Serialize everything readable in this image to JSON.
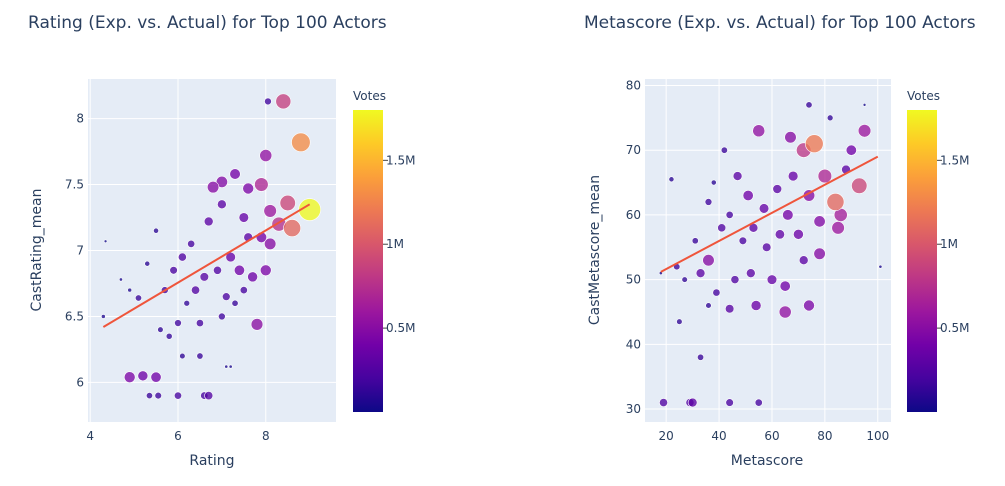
{
  "chart_data": [
    {
      "type": "scatter",
      "title": "Rating (Exp. vs. Actual) for Top 100 Actors",
      "xlabel": "Rating",
      "ylabel": "CastRating_mean",
      "xlim": [
        3.95,
        9.6
      ],
      "ylim": [
        5.7,
        8.3
      ],
      "xticks": [
        4,
        6,
        8
      ],
      "yticks": [
        6,
        6.5,
        7,
        7.5,
        8
      ],
      "size_encoding": "Votes",
      "color_encoding": "Votes",
      "colorbar": {
        "title": "Votes",
        "ticks": [
          "0.5M",
          "1M",
          "1.5M"
        ],
        "tick_values": [
          500000,
          1000000,
          1500000
        ],
        "range": [
          0,
          1800000
        ]
      },
      "trendline": {
        "x": [
          4.3,
          9.0
        ],
        "y": [
          6.42,
          7.35
        ],
        "color": "#ef553b"
      },
      "sampled_points_x_y_votes": [
        [
          4.3,
          6.5,
          60000
        ],
        [
          4.35,
          7.07,
          10000
        ],
        [
          4.9,
          6.04,
          450000
        ],
        [
          5.2,
          6.05,
          380000
        ],
        [
          5.5,
          6.04,
          400000
        ],
        [
          5.35,
          5.9,
          150000
        ],
        [
          5.55,
          5.9,
          170000
        ],
        [
          6.0,
          5.9,
          200000
        ],
        [
          6.6,
          5.9,
          210000
        ],
        [
          6.7,
          5.9,
          260000
        ],
        [
          6.1,
          6.2,
          120000
        ],
        [
          6.5,
          6.2,
          150000
        ],
        [
          7.1,
          6.12,
          40000
        ],
        [
          7.2,
          6.12,
          40000
        ],
        [
          4.7,
          6.78,
          40000
        ],
        [
          4.9,
          6.7,
          60000
        ],
        [
          5.1,
          6.64,
          150000
        ],
        [
          5.3,
          6.9,
          100000
        ],
        [
          5.5,
          7.15,
          100000
        ],
        [
          5.6,
          6.4,
          120000
        ],
        [
          5.8,
          6.35,
          140000
        ],
        [
          6.0,
          6.45,
          180000
        ],
        [
          6.2,
          6.6,
          130000
        ],
        [
          6.5,
          6.45,
          200000
        ],
        [
          7.0,
          6.5,
          180000
        ],
        [
          7.3,
          6.6,
          150000
        ],
        [
          7.8,
          6.44,
          520000
        ],
        [
          7.5,
          6.7,
          200000
        ],
        [
          6.8,
          7.48,
          500000
        ],
        [
          7.0,
          7.52,
          480000
        ],
        [
          7.3,
          7.58,
          420000
        ],
        [
          7.6,
          7.47,
          450000
        ],
        [
          7.9,
          7.5,
          700000
        ],
        [
          8.0,
          7.72,
          550000
        ],
        [
          8.05,
          8.13,
          180000
        ],
        [
          8.4,
          8.13,
          850000
        ],
        [
          8.8,
          7.82,
          1300000
        ],
        [
          9.0,
          7.31,
          1800000
        ],
        [
          8.6,
          7.17,
          1100000
        ],
        [
          8.3,
          7.2,
          750000
        ],
        [
          8.1,
          7.3,
          600000
        ],
        [
          8.5,
          7.36,
          900000
        ],
        [
          7.6,
          7.1,
          300000
        ],
        [
          7.2,
          6.95,
          350000
        ],
        [
          6.9,
          6.85,
          250000
        ],
        [
          6.6,
          6.8,
          280000
        ],
        [
          6.3,
          7.05,
          200000
        ],
        [
          6.1,
          6.95,
          250000
        ],
        [
          5.9,
          6.85,
          220000
        ],
        [
          6.7,
          7.22,
          300000
        ],
        [
          7.4,
          6.85,
          400000
        ],
        [
          7.7,
          6.8,
          380000
        ],
        [
          8.0,
          6.85,
          450000
        ],
        [
          8.1,
          7.05,
          500000
        ],
        [
          7.0,
          7.35,
          300000
        ],
        [
          7.5,
          7.25,
          350000
        ],
        [
          5.7,
          6.7,
          180000
        ],
        [
          6.4,
          6.7,
          260000
        ],
        [
          7.1,
          6.65,
          230000
        ],
        [
          7.9,
          7.1,
          420000
        ]
      ]
    },
    {
      "type": "scatter",
      "title": "Metascore (Exp. vs. Actual) for Top 100 Actors",
      "xlabel": "Metascore",
      "ylabel": "CastMetascore_mean",
      "xlim": [
        12,
        105
      ],
      "ylim": [
        28,
        81
      ],
      "xticks": [
        20,
        40,
        60,
        80,
        100
      ],
      "yticks": [
        30,
        40,
        50,
        60,
        70,
        80
      ],
      "size_encoding": "Votes",
      "color_encoding": "Votes",
      "colorbar": {
        "title": "Votes",
        "ticks": [
          "0.5M",
          "1M",
          "1.5M"
        ],
        "tick_values": [
          500000,
          1000000,
          1500000
        ],
        "range": [
          0,
          1800000
        ]
      },
      "trendline": {
        "x": [
          18,
          100
        ],
        "y": [
          51.2,
          69.0
        ],
        "color": "#ef553b"
      },
      "sampled_points_x_y_votes": [
        [
          19,
          31,
          250000
        ],
        [
          29,
          31,
          250000
        ],
        [
          30,
          31,
          300000
        ],
        [
          44,
          31,
          220000
        ],
        [
          55,
          31,
          200000
        ],
        [
          33,
          38,
          150000
        ],
        [
          25,
          43.5,
          120000
        ],
        [
          36,
          46,
          120000
        ],
        [
          44,
          45.5,
          280000
        ],
        [
          54,
          46,
          380000
        ],
        [
          65,
          45,
          550000
        ],
        [
          74,
          46,
          450000
        ],
        [
          18,
          51,
          40000
        ],
        [
          24,
          52,
          160000
        ],
        [
          27,
          50,
          120000
        ],
        [
          33,
          51,
          300000
        ],
        [
          36,
          53,
          500000
        ],
        [
          39,
          48,
          200000
        ],
        [
          46,
          50,
          250000
        ],
        [
          52,
          51,
          300000
        ],
        [
          60,
          50,
          350000
        ],
        [
          65,
          49,
          400000
        ],
        [
          72,
          53,
          300000
        ],
        [
          78,
          54,
          500000
        ],
        [
          85,
          58,
          600000
        ],
        [
          93,
          64.5,
          900000
        ],
        [
          95,
          73,
          600000
        ],
        [
          101,
          52,
          40000
        ],
        [
          95,
          77,
          20000
        ],
        [
          74,
          77,
          150000
        ],
        [
          82,
          75,
          130000
        ],
        [
          88,
          67,
          300000
        ],
        [
          90,
          70,
          400000
        ],
        [
          84,
          62,
          1100000
        ],
        [
          76,
          71,
          1200000
        ],
        [
          72,
          70,
          800000
        ],
        [
          67,
          72,
          500000
        ],
        [
          55,
          73,
          550000
        ],
        [
          42,
          70,
          150000
        ],
        [
          47,
          66,
          300000
        ],
        [
          51,
          63,
          400000
        ],
        [
          57,
          61,
          350000
        ],
        [
          62,
          64,
          300000
        ],
        [
          66,
          60,
          420000
        ],
        [
          70,
          57,
          380000
        ],
        [
          74,
          63,
          500000
        ],
        [
          80,
          66,
          700000
        ],
        [
          86,
          60,
          650000
        ],
        [
          41,
          58,
          250000
        ],
        [
          44,
          60,
          200000
        ],
        [
          36,
          62,
          180000
        ],
        [
          31,
          56,
          150000
        ],
        [
          49,
          56,
          220000
        ],
        [
          53,
          58,
          300000
        ],
        [
          58,
          55,
          280000
        ],
        [
          63,
          57,
          330000
        ],
        [
          68,
          66,
          360000
        ],
        [
          78,
          59,
          480000
        ],
        [
          38,
          65,
          100000
        ],
        [
          22,
          65.5,
          100000
        ]
      ]
    }
  ]
}
